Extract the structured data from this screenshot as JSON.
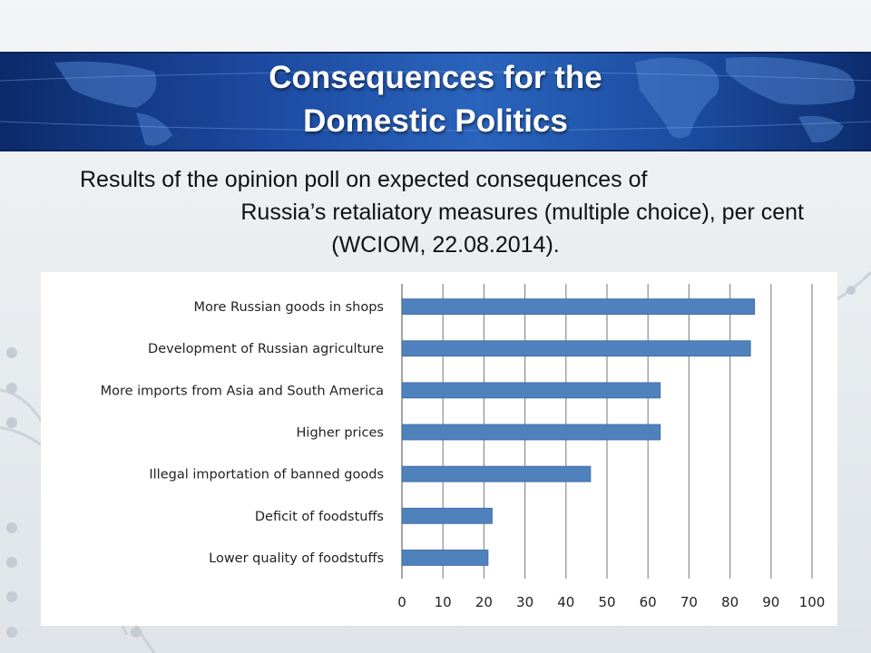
{
  "slide": {
    "title_line1": "Consequences for the",
    "title_line2": "Domestic Politics",
    "subtitle_line1": "Results of the opinion poll on expected consequences of",
    "subtitle_line2": "Russia’s retaliatory measures (multiple choice), per cent",
    "subtitle_line3": "(WCIOM, 22.08.2014)."
  },
  "colors": {
    "bar": "#4f81bd",
    "banner": "#1c4aa0",
    "grid": "#8c8c8c"
  },
  "chart_data": {
    "type": "bar",
    "orientation": "horizontal",
    "categories": [
      "More Russian goods in shops",
      "Development of Russian agriculture",
      "More imports from Asia and South America",
      "Higher prices",
      "Illegal importation of banned goods",
      "Deficit of foodstuffs",
      "Lower quality of foodstuffs"
    ],
    "values": [
      86,
      85,
      63,
      63,
      46,
      22,
      21
    ],
    "xlim": [
      0,
      100
    ],
    "xticks": [
      0,
      10,
      20,
      30,
      40,
      50,
      60,
      70,
      80,
      90,
      100
    ],
    "grid": "vertical",
    "title": "",
    "xlabel": "",
    "ylabel": ""
  }
}
